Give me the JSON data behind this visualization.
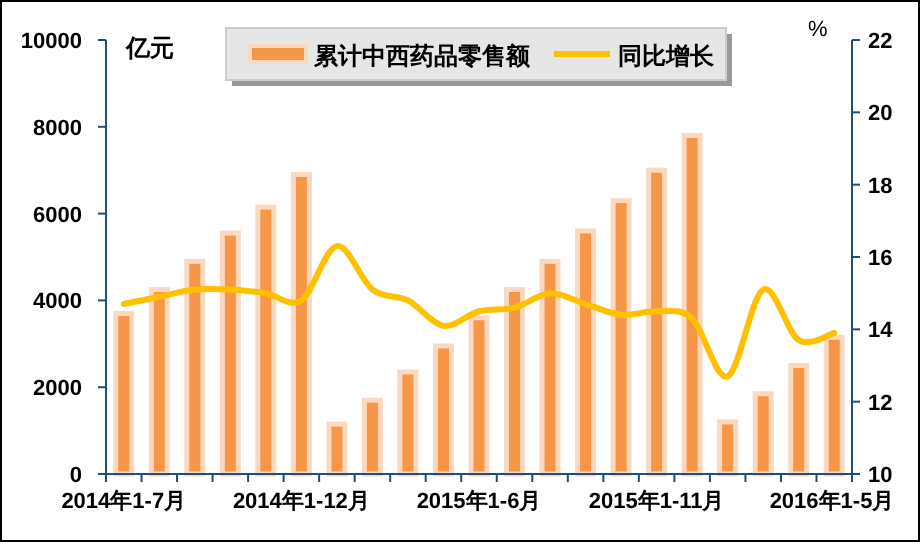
{
  "chart_data": {
    "type": "bar",
    "categories": [
      "2014年1-7月",
      null,
      null,
      null,
      null,
      "2014年1-12月",
      null,
      null,
      null,
      null,
      "2015年1-6月",
      null,
      null,
      null,
      null,
      "2015年1-11月",
      null,
      null,
      null,
      null,
      "2016年1-5月"
    ],
    "series": [
      {
        "name": "累计中西药品零售额",
        "color": "#f79646",
        "values": [
          3700,
          4250,
          4900,
          5550,
          6150,
          6900,
          1150,
          1700,
          2350,
          2950,
          3600,
          4250,
          4900,
          5600,
          6300,
          7000,
          7800,
          1200,
          1850,
          2500,
          3150
        ]
      },
      {
        "name": "同比增长",
        "type": "line",
        "axis": "y2",
        "color": "#ffc000",
        "values": [
          14.7,
          14.9,
          15.1,
          15.1,
          15.0,
          14.8,
          16.3,
          15.1,
          14.8,
          14.1,
          14.5,
          14.6,
          15.0,
          14.7,
          14.4,
          14.5,
          14.3,
          12.7,
          15.1,
          13.7,
          13.9
        ]
      }
    ],
    "ylabel": "亿元",
    "y2label": "%",
    "ylim": [
      0,
      10000
    ],
    "yticks": [
      0,
      2000,
      4000,
      6000,
      8000,
      10000
    ],
    "y2lim": [
      10,
      22
    ],
    "y2ticks": [
      10,
      12,
      14,
      16,
      18,
      20,
      22
    ],
    "legend": "top",
    "grid": false
  }
}
